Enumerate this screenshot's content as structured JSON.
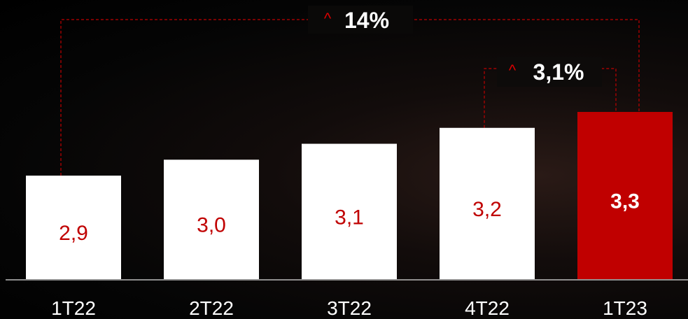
{
  "chart_data": {
    "type": "bar",
    "categories": [
      "1T22",
      "2T22",
      "3T22",
      "4T22",
      "1T23"
    ],
    "values": [
      2.9,
      3.0,
      3.1,
      3.2,
      3.3
    ],
    "value_labels": [
      "2,9",
      "3,0",
      "3,1",
      "3,2",
      "3,3"
    ],
    "highlight_index": 4,
    "ylim": [
      0,
      3.6
    ],
    "grid": false,
    "annotations": [
      {
        "from": "1T22",
        "to": "1T23",
        "text": "14%"
      },
      {
        "from": "4T22",
        "to": "1T23",
        "text": "3,1%"
      }
    ]
  },
  "colors": {
    "background": "#000000",
    "bar": "#ffffff",
    "bar_highlight": "#c00000",
    "value_text": "#c00000",
    "value_text_highlight": "#ffffff",
    "connector": "#c00000",
    "caret": "#e00000",
    "axis": "#bbbbbb",
    "text": "#ffffff"
  },
  "icons": {
    "growth_marker": "caret-up-icon"
  }
}
